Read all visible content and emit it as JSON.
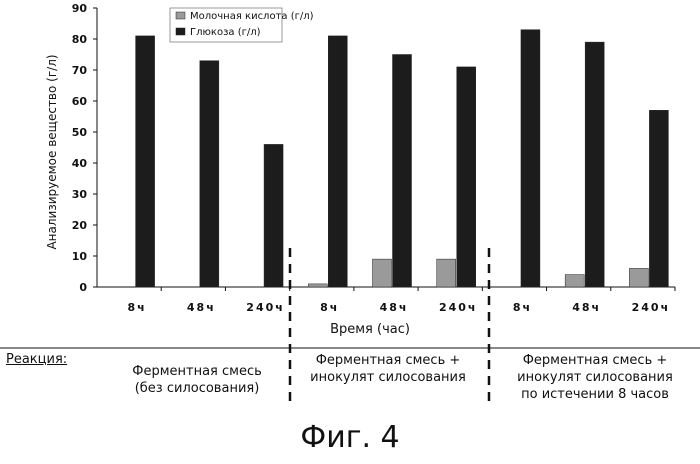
{
  "chart_data": {
    "type": "bar",
    "ylabel": "Анализируемое вещество (г/л)",
    "xlabel": "Время (час)",
    "ylim": [
      0,
      90
    ],
    "yticks": [
      0,
      10,
      20,
      30,
      40,
      50,
      60,
      70,
      80,
      90
    ],
    "legend_position": "top-center",
    "categories": [
      "8ч",
      "48ч",
      "240ч",
      "8ч",
      "48ч",
      "240ч",
      "8ч",
      "48ч",
      "240ч"
    ],
    "series": [
      {
        "name": "Молочная кислота (г/л)",
        "color": "#9a9a9a",
        "values": [
          0,
          0,
          0,
          1,
          9,
          9,
          0,
          4,
          6
        ]
      },
      {
        "name": "Глюкоза (г/л)",
        "color": "#1c1c1c",
        "values": [
          81,
          73,
          46,
          81,
          75,
          71,
          83,
          79,
          57
        ]
      }
    ],
    "groups": [
      {
        "label": "Ферментная смесь\n(без силосования)"
      },
      {
        "label": "Ферментная смесь +\nинокулят силосования"
      },
      {
        "label": "Ферментная смесь +\nинокулят силосования\nпо истечении 8 часов"
      }
    ]
  },
  "reaction_label": "Реакция:",
  "figure_title": "Фиг. 4"
}
